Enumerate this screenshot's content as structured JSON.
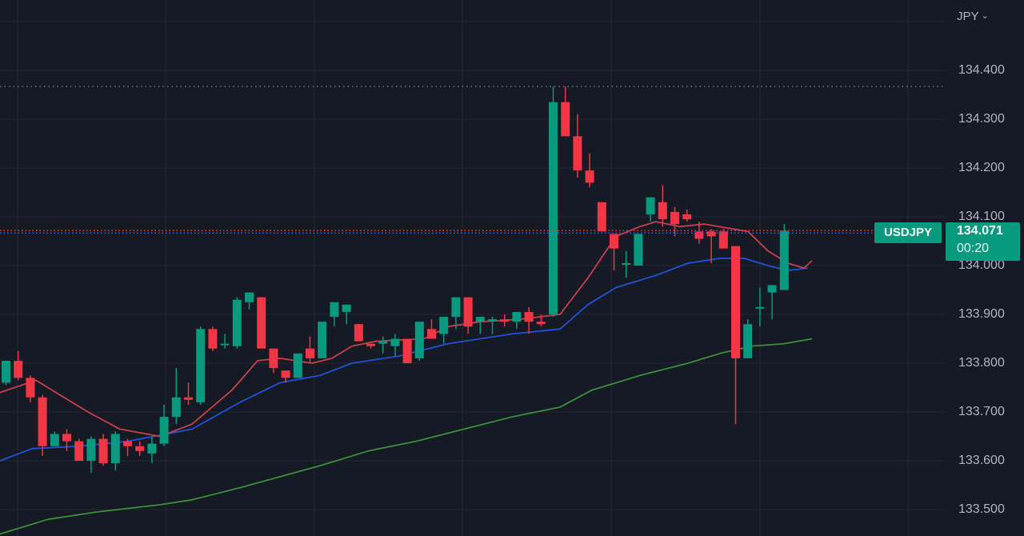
{
  "chart_data": {
    "type": "candlestick",
    "symbol": "USDJPY",
    "currency": "JPY",
    "last_price": "134.071",
    "countdown": "00:20",
    "y_axis": {
      "ticks": [
        "134.400",
        "134.300",
        "134.200",
        "134.100",
        "134.000",
        "133.900",
        "133.800",
        "133.700",
        "133.600",
        "133.500"
      ],
      "range": [
        133.463,
        134.498
      ]
    },
    "high_line": 134.367,
    "colors": {
      "up": "#089981",
      "down": "#f23645",
      "ma_fast": "#c7404a",
      "ma_mid": "#2151d6",
      "ma_slow": "#3c8f3c",
      "grid": "#242834",
      "background": "#161a25"
    },
    "candles": [
      [
        133.76,
        133.805,
        133.755,
        133.805
      ],
      [
        133.805,
        133.825,
        133.765,
        133.77
      ],
      [
        133.77,
        133.775,
        133.72,
        133.73
      ],
      [
        133.73,
        133.735,
        133.61,
        133.63
      ],
      [
        133.63,
        133.66,
        133.63,
        133.655
      ],
      [
        133.655,
        133.665,
        133.62,
        133.64
      ],
      [
        133.64,
        133.645,
        133.6,
        133.6
      ],
      [
        133.6,
        133.65,
        133.575,
        133.645
      ],
      [
        133.645,
        133.655,
        133.59,
        133.595
      ],
      [
        133.595,
        133.66,
        133.58,
        133.655
      ],
      [
        133.64,
        133.645,
        133.61,
        133.63
      ],
      [
        133.63,
        133.64,
        133.61,
        133.62
      ],
      [
        133.615,
        133.65,
        133.595,
        133.635
      ],
      [
        133.635,
        133.715,
        133.63,
        133.69
      ],
      [
        133.69,
        133.79,
        133.675,
        133.73
      ],
      [
        133.73,
        133.76,
        133.715,
        133.725
      ],
      [
        133.72,
        133.875,
        133.715,
        133.87
      ],
      [
        133.87,
        133.875,
        133.825,
        133.83
      ],
      [
        133.84,
        133.86,
        133.83,
        133.84
      ],
      [
        133.835,
        133.935,
        133.83,
        133.93
      ],
      [
        133.925,
        133.945,
        133.91,
        133.945
      ],
      [
        133.935,
        133.935,
        133.83,
        133.83
      ],
      [
        133.83,
        133.83,
        133.78,
        133.79
      ],
      [
        133.785,
        133.785,
        133.76,
        133.77
      ],
      [
        133.77,
        133.82,
        133.77,
        133.82
      ],
      [
        133.83,
        133.855,
        133.8,
        133.81
      ],
      [
        133.81,
        133.885,
        133.81,
        133.885
      ],
      [
        133.895,
        133.925,
        133.875,
        133.925
      ],
      [
        133.905,
        133.92,
        133.88,
        133.92
      ],
      [
        133.88,
        133.88,
        133.845,
        133.845
      ],
      [
        133.84,
        133.84,
        133.83,
        133.835
      ],
      [
        133.84,
        133.855,
        133.82,
        133.845
      ],
      [
        133.835,
        133.86,
        133.815,
        133.85
      ],
      [
        133.85,
        133.85,
        133.8,
        133.8
      ],
      [
        133.81,
        133.885,
        133.805,
        133.885
      ],
      [
        133.87,
        133.89,
        133.85,
        133.85
      ],
      [
        133.86,
        133.895,
        133.84,
        133.895
      ],
      [
        133.895,
        133.935,
        133.87,
        133.935
      ],
      [
        133.935,
        133.935,
        133.86,
        133.875
      ],
      [
        133.885,
        133.895,
        133.86,
        133.895
      ],
      [
        133.89,
        133.895,
        133.86,
        133.89
      ],
      [
        133.89,
        133.9,
        133.875,
        133.885
      ],
      [
        133.885,
        133.905,
        133.87,
        133.905
      ],
      [
        133.905,
        133.915,
        133.86,
        133.885
      ],
      [
        133.885,
        133.9,
        133.875,
        133.88
      ],
      [
        133.9,
        134.367,
        133.895,
        134.335
      ],
      [
        134.335,
        134.367,
        134.265,
        134.265
      ],
      [
        134.265,
        134.31,
        134.18,
        134.195
      ],
      [
        134.195,
        134.23,
        134.16,
        134.17
      ],
      [
        134.13,
        134.13,
        134.08,
        134.07
      ],
      [
        134.065,
        134.065,
        133.99,
        134.035
      ],
      [
        134.005,
        134.03,
        133.975,
        134.005
      ],
      [
        134.0,
        134.045,
        134.0,
        134.065
      ],
      [
        134.105,
        134.115,
        134.09,
        134.14
      ],
      [
        134.13,
        134.165,
        134.08,
        134.095
      ],
      [
        134.11,
        134.12,
        134.06,
        134.085
      ],
      [
        134.105,
        134.115,
        134.09,
        134.095
      ],
      [
        134.07,
        134.09,
        134.045,
        134.055
      ],
      [
        134.07,
        134.075,
        134.005,
        134.06
      ],
      [
        134.07,
        134.075,
        134.035,
        134.035
      ],
      [
        134.04,
        134.04,
        133.675,
        133.81
      ],
      [
        133.81,
        133.89,
        133.81,
        133.88
      ],
      [
        133.915,
        133.955,
        133.875,
        133.915
      ],
      [
        133.945,
        133.95,
        133.89,
        133.96
      ],
      [
        133.95,
        134.085,
        133.95,
        134.071
      ]
    ],
    "candle_x_start": 7.5,
    "candle_spacing": 15.2,
    "ma_fast": [
      [
        0,
        133.74
      ],
      [
        45,
        133.765
      ],
      [
        110,
        133.7
      ],
      [
        150,
        133.665
      ],
      [
        200,
        133.65
      ],
      [
        240,
        133.675
      ],
      [
        290,
        133.745
      ],
      [
        322,
        133.805
      ],
      [
        350,
        133.81
      ],
      [
        390,
        133.8
      ],
      [
        415,
        133.81
      ],
      [
        440,
        133.835
      ],
      [
        470,
        133.845
      ],
      [
        530,
        133.85
      ],
      [
        560,
        133.875
      ],
      [
        600,
        133.885
      ],
      [
        650,
        133.89
      ],
      [
        700,
        133.9
      ],
      [
        735,
        133.975
      ],
      [
        770,
        134.06
      ],
      [
        800,
        134.08
      ],
      [
        820,
        134.09
      ],
      [
        850,
        134.08
      ],
      [
        880,
        134.085
      ],
      [
        935,
        134.07
      ],
      [
        960,
        134.03
      ],
      [
        985,
        134.005
      ],
      [
        1005,
        133.995
      ],
      [
        1015,
        134.01
      ]
    ],
    "ma_mid": [
      [
        0,
        133.6
      ],
      [
        40,
        133.625
      ],
      [
        100,
        133.63
      ],
      [
        160,
        133.64
      ],
      [
        240,
        133.665
      ],
      [
        300,
        133.72
      ],
      [
        350,
        133.76
      ],
      [
        400,
        133.775
      ],
      [
        440,
        133.8
      ],
      [
        500,
        133.815
      ],
      [
        560,
        133.84
      ],
      [
        640,
        133.86
      ],
      [
        700,
        133.87
      ],
      [
        735,
        133.92
      ],
      [
        770,
        133.955
      ],
      [
        820,
        133.98
      ],
      [
        860,
        134.005
      ],
      [
        900,
        134.015
      ],
      [
        930,
        134.015
      ],
      [
        960,
        134.0
      ],
      [
        985,
        133.99
      ],
      [
        1010,
        133.995
      ]
    ],
    "ma_slow": [
      [
        0,
        133.45
      ],
      [
        60,
        133.48
      ],
      [
        120,
        133.495
      ],
      [
        200,
        133.51
      ],
      [
        240,
        133.52
      ],
      [
        300,
        133.545
      ],
      [
        400,
        133.59
      ],
      [
        460,
        133.62
      ],
      [
        520,
        133.64
      ],
      [
        580,
        133.665
      ],
      [
        640,
        133.69
      ],
      [
        700,
        133.71
      ],
      [
        740,
        133.745
      ],
      [
        800,
        133.775
      ],
      [
        860,
        133.8
      ],
      [
        900,
        133.82
      ],
      [
        940,
        133.835
      ],
      [
        980,
        133.84
      ],
      [
        1015,
        133.85
      ]
    ]
  }
}
